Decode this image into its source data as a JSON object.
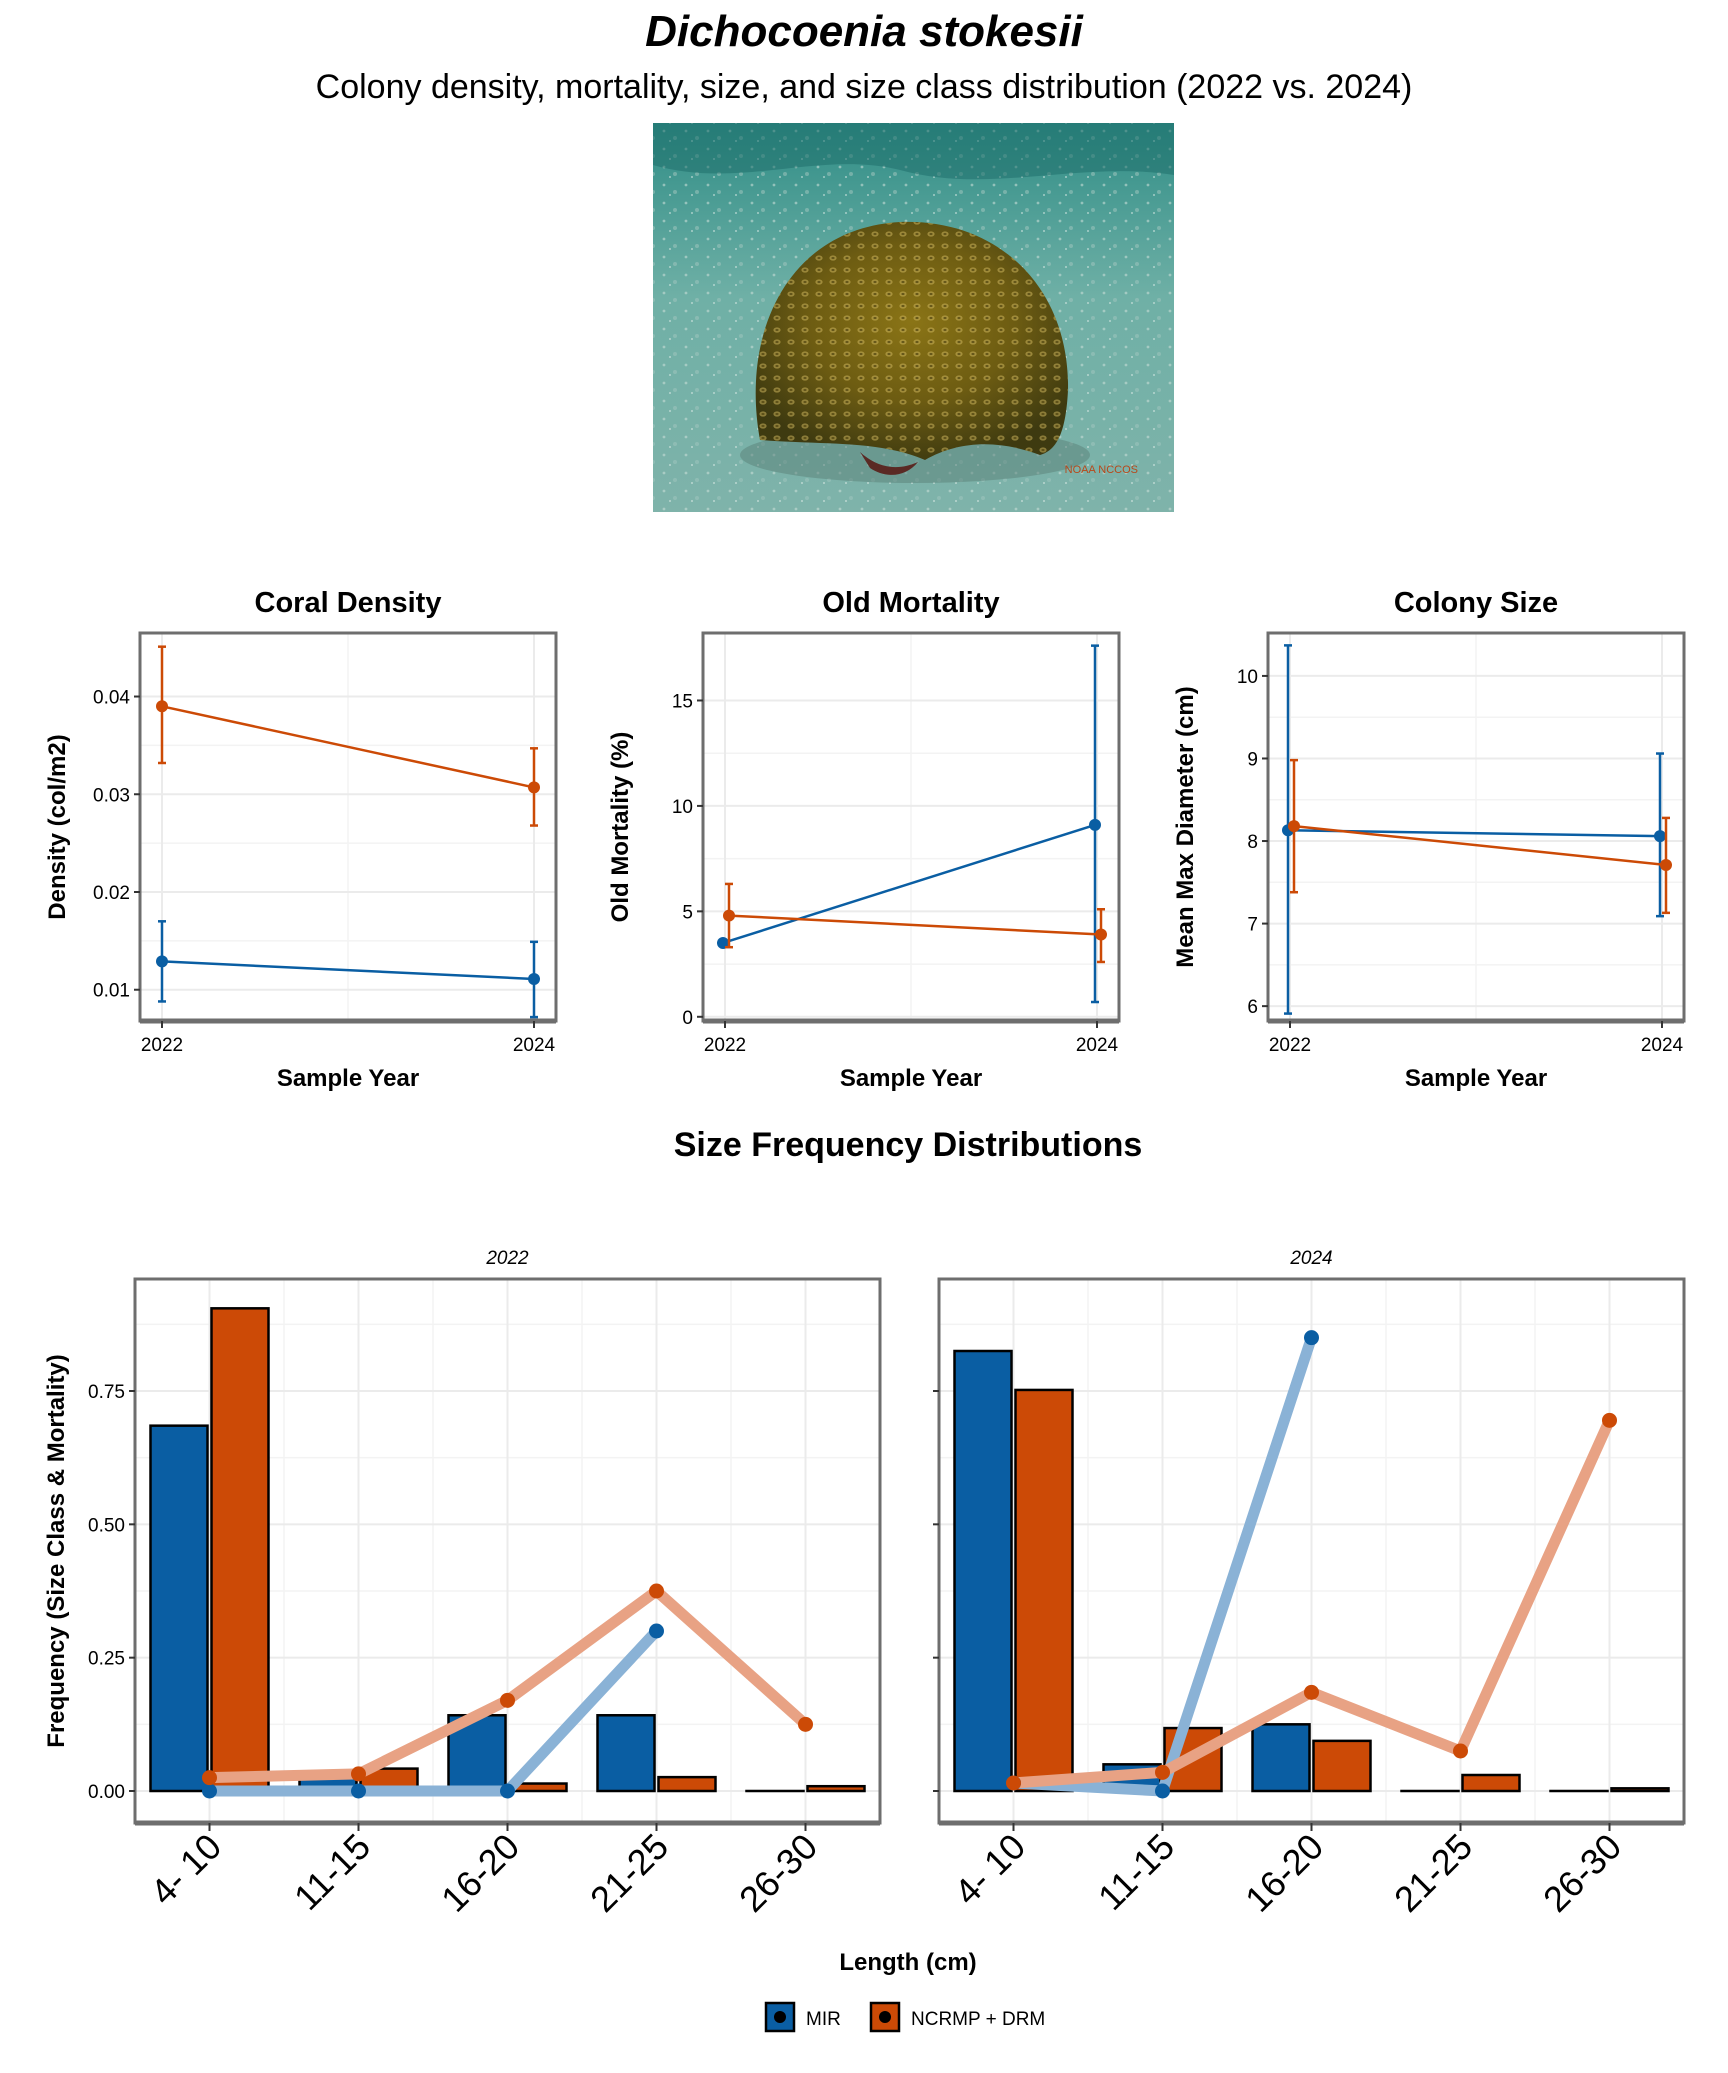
{
  "header": {
    "title": "Dichocoenia stokesii",
    "subtitle": "Colony density, mortality, size, and size class distribution (2022 vs. 2024)"
  },
  "photo": {
    "icon": "coral-colony-photo",
    "watermark": "NOAA NCCOS"
  },
  "colors": {
    "mir": "#0a5ea3",
    "ncrmp": "#cc4a06",
    "mir_light": "#8ab2d6",
    "ncrmp_light": "#e8a284",
    "grid": "#ebebeb",
    "frame": "#6e6e6e"
  },
  "chart_data": [
    {
      "id": "density",
      "type": "line",
      "title": "Coral Density",
      "xlabel": "Sample Year",
      "ylabel": "Density (col/m2)",
      "x": [
        "2022",
        "2024"
      ],
      "ylim": [
        0.0068,
        0.0465
      ],
      "yticks": [
        0.01,
        0.02,
        0.03,
        0.04
      ],
      "ytick_labels": [
        "0.01",
        "0.02",
        "0.03",
        "0.04"
      ],
      "series": [
        {
          "name": "MIR",
          "values": [
            0.0129,
            0.0111
          ],
          "lower": [
            0.0088,
            0.0072
          ],
          "upper": [
            0.017,
            0.0149
          ]
        },
        {
          "name": "NCRMP + DRM",
          "values": [
            0.039,
            0.0307
          ],
          "lower": [
            0.0332,
            0.0268
          ],
          "upper": [
            0.0451,
            0.0347
          ]
        }
      ]
    },
    {
      "id": "mortality",
      "type": "line",
      "title": "Old Mortality",
      "xlabel": "Sample Year",
      "ylabel": "Old Mortality (%)",
      "x": [
        "2022",
        "2024"
      ],
      "ylim": [
        -0.2,
        18.2
      ],
      "yticks": [
        0,
        5,
        10,
        15
      ],
      "ytick_labels": [
        "0",
        "5",
        "10",
        "15"
      ],
      "series": [
        {
          "name": "MIR",
          "values": [
            3.5,
            9.1
          ],
          "lower": [
            3.5,
            0.7
          ],
          "upper": [
            3.5,
            17.6
          ]
        },
        {
          "name": "NCRMP + DRM",
          "values": [
            4.8,
            3.9
          ],
          "lower": [
            3.3,
            2.6
          ],
          "upper": [
            6.3,
            5.1
          ]
        }
      ]
    },
    {
      "id": "size",
      "type": "line",
      "title": "Colony Size",
      "xlabel": "Sample Year",
      "ylabel": "Mean Max Diameter (cm)",
      "x": [
        "2022",
        "2024"
      ],
      "ylim": [
        5.82,
        10.52
      ],
      "yticks": [
        6,
        7,
        8,
        9,
        10
      ],
      "ytick_labels": [
        "6",
        "7",
        "8",
        "9",
        "10"
      ],
      "series": [
        {
          "name": "MIR",
          "values": [
            8.13,
            8.06
          ],
          "lower": [
            5.91,
            7.09
          ],
          "upper": [
            10.37,
            9.06
          ]
        },
        {
          "name": "NCRMP + DRM",
          "values": [
            8.18,
            7.71
          ],
          "lower": [
            7.38,
            7.13
          ],
          "upper": [
            8.98,
            8.28
          ]
        }
      ]
    },
    {
      "id": "sfd",
      "type": "bar",
      "title": "Size Frequency Distributions",
      "xlabel": "Length (cm)",
      "ylabel": "Frequency (Size Class & Mortality)",
      "categories": [
        "4- 10",
        "11-15",
        "16-20",
        "21-25",
        "26-30"
      ],
      "ylim": [
        -0.06,
        0.96
      ],
      "yticks": [
        0,
        0.25,
        0.5,
        0.75
      ],
      "ytick_labels": [
        "0.00",
        "0.25",
        "0.50",
        "0.75"
      ],
      "panels": [
        {
          "label": "2022",
          "bars": [
            {
              "name": "MIR",
              "values": [
                0.685,
                0.025,
                0.142,
                0.142,
                0.0
              ]
            },
            {
              "name": "NCRMP + DRM",
              "values": [
                0.905,
                0.042,
                0.014,
                0.026,
                0.009
              ]
            }
          ],
          "mortality": [
            {
              "name": "MIR",
              "values": [
                0.0,
                0.0,
                0.0,
                0.3,
                null
              ]
            },
            {
              "name": "NCRMP + DRM",
              "values": [
                0.025,
                0.032,
                0.17,
                0.375,
                0.125
              ]
            }
          ]
        },
        {
          "label": "2024",
          "bars": [
            {
              "name": "MIR",
              "values": [
                0.825,
                0.05,
                0.125,
                0.0,
                0.0
              ]
            },
            {
              "name": "NCRMP + DRM",
              "values": [
                0.752,
                0.118,
                0.094,
                0.03,
                0.005
              ]
            }
          ],
          "mortality": [
            {
              "name": "MIR",
              "values": [
                0.015,
                0.0,
                0.85,
                null,
                null
              ]
            },
            {
              "name": "NCRMP + DRM",
              "values": [
                0.015,
                0.035,
                0.185,
                0.075,
                0.695
              ]
            }
          ]
        }
      ]
    }
  ],
  "legend": {
    "placement": "bottom-center",
    "items": [
      {
        "name": "MIR"
      },
      {
        "name": "NCRMP + DRM"
      }
    ]
  }
}
